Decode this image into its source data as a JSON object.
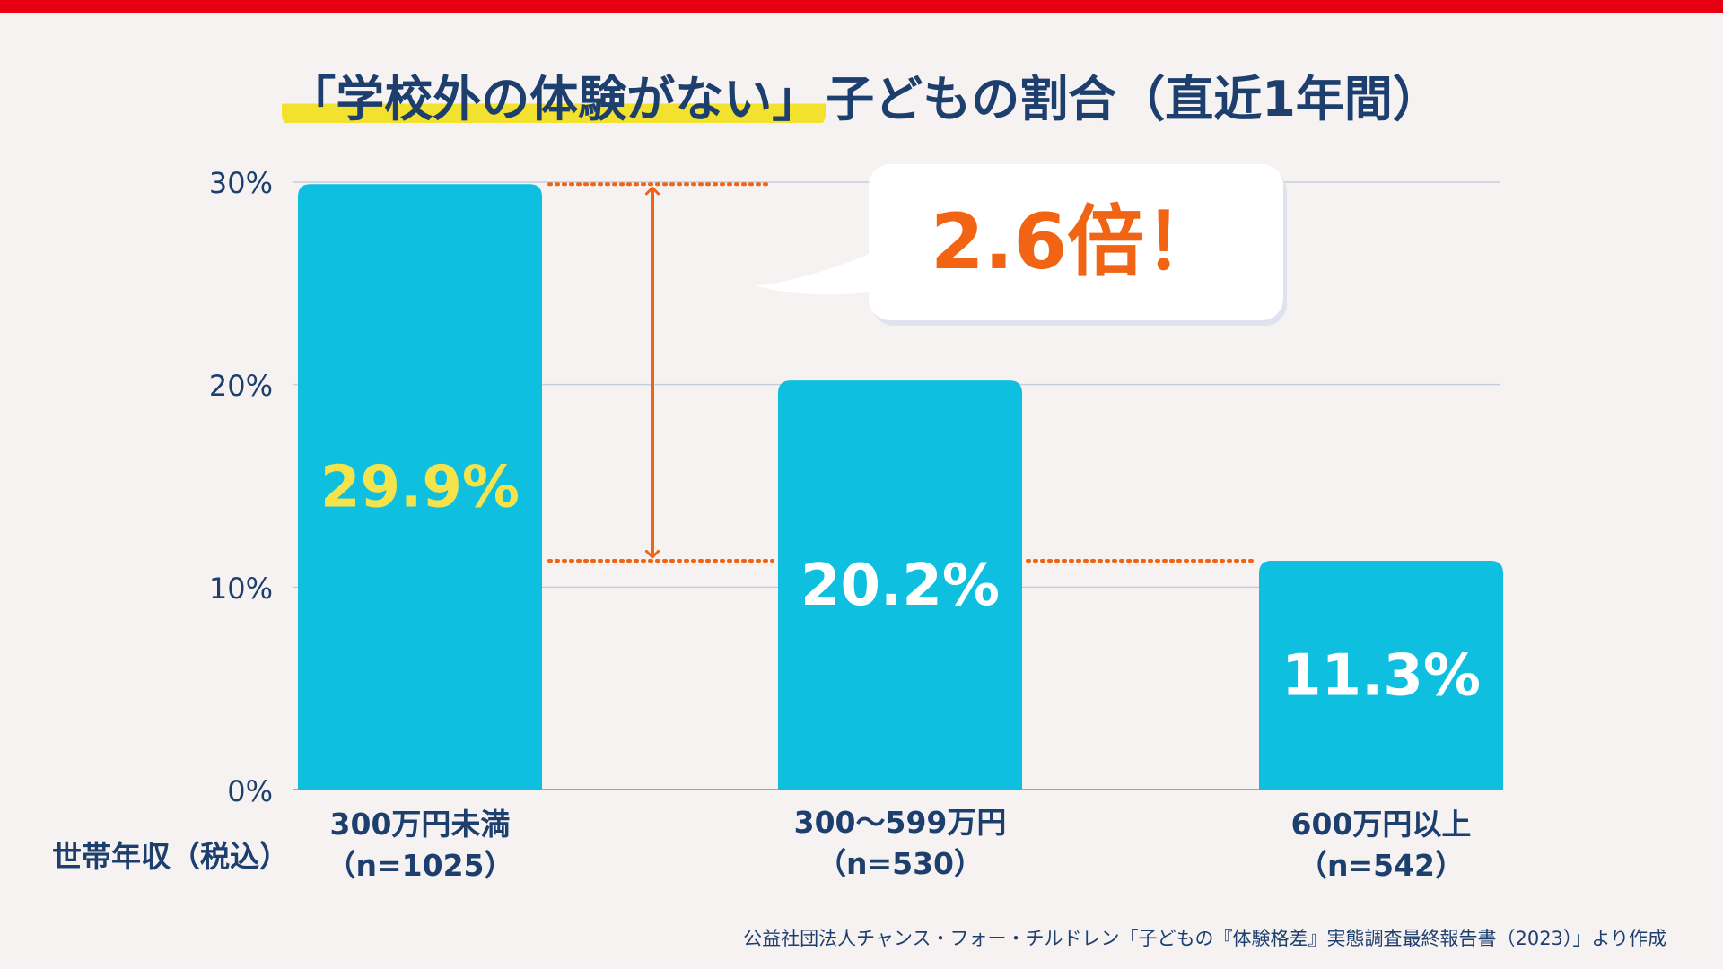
{
  "header": {
    "title_highlight": "「学校外の体験がない」",
    "title_rest": "子どもの割合（直近1年間）"
  },
  "callout": {
    "text": "2.6倍！"
  },
  "colors": {
    "bar": "#0fbfdf",
    "first_value_label": "#f5e34b",
    "other_value_label": "#ffffff",
    "accent": "#f06414",
    "text": "#1d3f6e",
    "grid": "#c5cede",
    "top_bar": "#e60012"
  },
  "chart_data": {
    "type": "bar",
    "title": "「学校外の体験がない」子どもの割合（直近1年間）",
    "xlabel": "世帯年収（税込）",
    "ylabel": "",
    "ylim": [
      0,
      30
    ],
    "yticks": [
      0,
      10,
      20,
      30
    ],
    "ytick_labels": [
      "0%",
      "10%",
      "20%",
      "30%"
    ],
    "categories": [
      "300万円未満",
      "300〜599万円",
      "600万円以上"
    ],
    "sample_sizes": [
      "（n=1025）",
      "（n=530）",
      "（n=542）"
    ],
    "values": [
      29.9,
      20.2,
      11.3
    ],
    "value_labels": [
      "29.9%",
      "20.2%",
      "11.3%"
    ],
    "annotation": "2.6倍！"
  },
  "footer": {
    "source": "公益社団法人チャンス・フォー・チルドレン「子どもの『体験格差』実態調査最終報告書（2023）」より作成"
  }
}
